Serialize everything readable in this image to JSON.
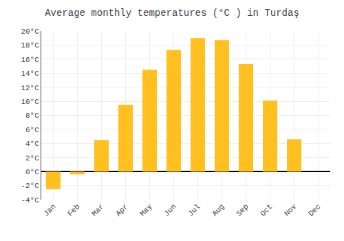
{
  "chart_data": {
    "type": "bar",
    "title": "Average monthly temperatures (°C ) in Turdaş",
    "categories": [
      "Jan",
      "Feb",
      "Mar",
      "Apr",
      "May",
      "Jun",
      "Jul",
      "Aug",
      "Sep",
      "Oct",
      "Nov",
      "Dec"
    ],
    "values": [
      -2.5,
      -0.4,
      4.5,
      9.5,
      14.5,
      17.3,
      19.0,
      18.7,
      15.3,
      10.1,
      4.6,
      0.0
    ],
    "color": "#FFC020",
    "ylim": [
      -4,
      20
    ],
    "yticks": [
      {
        "value": -4,
        "label": "-4°C"
      },
      {
        "value": -2,
        "label": "-2°C"
      },
      {
        "value": 0,
        "label": "0°C"
      },
      {
        "value": 2,
        "label": "2°C"
      },
      {
        "value": 4,
        "label": "4°C"
      },
      {
        "value": 6,
        "label": "6°C"
      },
      {
        "value": 8,
        "label": "8°C"
      },
      {
        "value": 10,
        "label": "10°C"
      },
      {
        "value": 12,
        "label": "12°C"
      },
      {
        "value": 14,
        "label": "14°C"
      },
      {
        "value": 16,
        "label": "16°C"
      },
      {
        "value": 18,
        "label": "18°C"
      },
      {
        "value": 20,
        "label": "20°C"
      }
    ],
    "grid": true
  }
}
